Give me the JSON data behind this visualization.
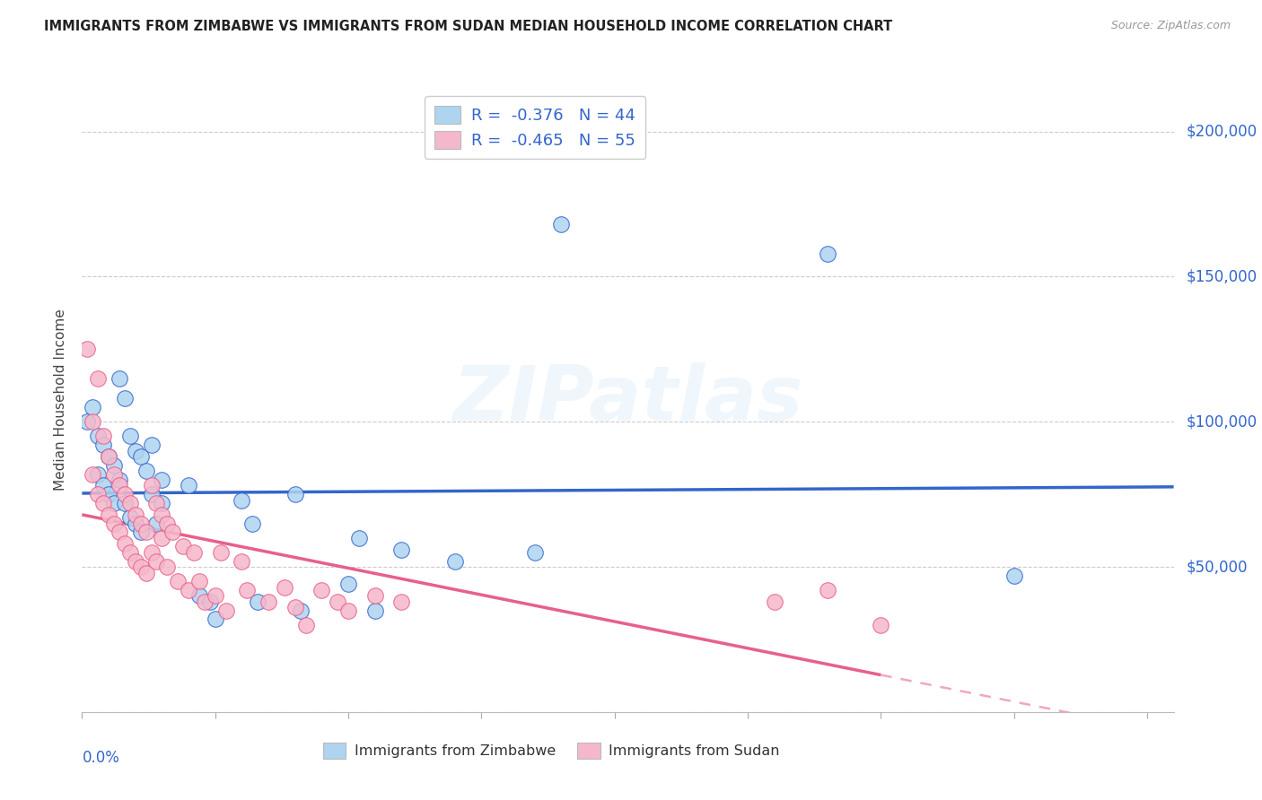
{
  "title": "IMMIGRANTS FROM ZIMBABWE VS IMMIGRANTS FROM SUDAN MEDIAN HOUSEHOLD INCOME CORRELATION CHART",
  "source": "Source: ZipAtlas.com",
  "ylabel": "Median Household Income",
  "watermark": "ZIPatlas",
  "color_zimbabwe": "#aed4f0",
  "color_sudan": "#f5b8cb",
  "line_color_zimbabwe": "#3366cc",
  "line_color_sudan": "#e8608a",
  "background": "#ffffff",
  "grid_color": "#cccccc",
  "right_label_color": "#3366cc",
  "legend1_line1": "R =  -0.376   N = 44",
  "legend1_line2": "R =  -0.465   N = 55",
  "legend2_text1": "Immigrants from Zimbabwe",
  "legend2_text2": "Immigrants from Sudan",
  "yticks": [
    0,
    50000,
    100000,
    150000,
    200000
  ],
  "ytick_labels_right": [
    "",
    "$50,000",
    "$100,000",
    "$150,000",
    "$200,000"
  ],
  "xlim": [
    0.0,
    0.205
  ],
  "ylim": [
    0,
    215000
  ],
  "zimbabwe_x": [
    0.001,
    0.002,
    0.003,
    0.003,
    0.004,
    0.004,
    0.005,
    0.005,
    0.006,
    0.006,
    0.007,
    0.007,
    0.008,
    0.008,
    0.009,
    0.009,
    0.01,
    0.01,
    0.011,
    0.011,
    0.012,
    0.013,
    0.013,
    0.014,
    0.015,
    0.015,
    0.02,
    0.022,
    0.024,
    0.025,
    0.03,
    0.032,
    0.033,
    0.04,
    0.041,
    0.05,
    0.052,
    0.055,
    0.06,
    0.07,
    0.085,
    0.09,
    0.14,
    0.175
  ],
  "zimbabwe_y": [
    100000,
    105000,
    95000,
    82000,
    92000,
    78000,
    88000,
    75000,
    85000,
    72000,
    115000,
    80000,
    108000,
    72000,
    95000,
    67000,
    90000,
    65000,
    88000,
    62000,
    83000,
    92000,
    75000,
    65000,
    80000,
    72000,
    78000,
    40000,
    38000,
    32000,
    73000,
    65000,
    38000,
    75000,
    35000,
    44000,
    60000,
    35000,
    56000,
    52000,
    55000,
    168000,
    158000,
    47000
  ],
  "sudan_x": [
    0.001,
    0.002,
    0.002,
    0.003,
    0.003,
    0.004,
    0.004,
    0.005,
    0.005,
    0.006,
    0.006,
    0.007,
    0.007,
    0.008,
    0.008,
    0.009,
    0.009,
    0.01,
    0.01,
    0.011,
    0.011,
    0.012,
    0.012,
    0.013,
    0.013,
    0.014,
    0.014,
    0.015,
    0.015,
    0.016,
    0.016,
    0.017,
    0.018,
    0.019,
    0.02,
    0.021,
    0.022,
    0.023,
    0.025,
    0.026,
    0.027,
    0.03,
    0.031,
    0.035,
    0.038,
    0.04,
    0.042,
    0.045,
    0.048,
    0.05,
    0.055,
    0.06,
    0.13,
    0.14,
    0.15
  ],
  "sudan_y": [
    125000,
    100000,
    82000,
    115000,
    75000,
    95000,
    72000,
    88000,
    68000,
    82000,
    65000,
    78000,
    62000,
    75000,
    58000,
    72000,
    55000,
    68000,
    52000,
    65000,
    50000,
    62000,
    48000,
    78000,
    55000,
    72000,
    52000,
    68000,
    60000,
    65000,
    50000,
    62000,
    45000,
    57000,
    42000,
    55000,
    45000,
    38000,
    40000,
    55000,
    35000,
    52000,
    42000,
    38000,
    43000,
    36000,
    30000,
    42000,
    38000,
    35000,
    40000,
    38000,
    38000,
    42000,
    30000
  ]
}
